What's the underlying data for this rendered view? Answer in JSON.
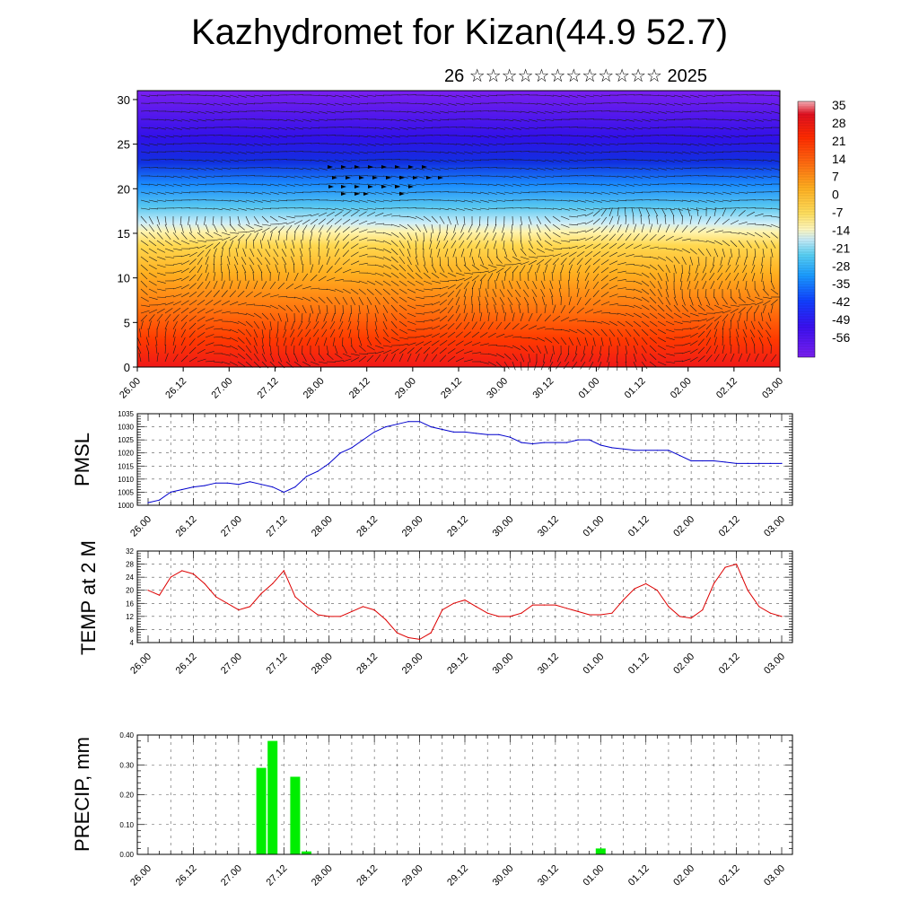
{
  "header": {
    "title": "Kazhydromet for Kizan(44.9 52.7)",
    "subtitle": "26 ☆☆☆☆☆☆☆☆☆☆☆☆ 2025"
  },
  "colors": {
    "pmsl_line": "#0000cc",
    "temp_line": "#dd0000",
    "precip_bar": "#00ee00",
    "grid": "#555555"
  },
  "chart_data": [
    {
      "type": "heatmap",
      "title": "",
      "xlabel": "",
      "ylabel": "",
      "x_ticks": [
        "26.00",
        "26.12",
        "27.00",
        "27.12",
        "28.00",
        "28.12",
        "29.00",
        "29.12",
        "30.00",
        "30.12",
        "01.00",
        "01.12",
        "02.00",
        "02.12",
        "03.00"
      ],
      "y_ticks": [
        0,
        5,
        10,
        15,
        20,
        25,
        30
      ],
      "ylim": [
        0,
        31
      ],
      "overlay": "wind vectors",
      "colorbar": {
        "labels": [
          35,
          28,
          21,
          14,
          7,
          0,
          -7,
          -14,
          -21,
          -28,
          -35,
          -42,
          -49,
          -56
        ],
        "range": [
          -60,
          38
        ]
      }
    },
    {
      "type": "line",
      "ylabel": "PMSL",
      "ylim": [
        1000,
        1035
      ],
      "y_ticks": [
        1000,
        1005,
        1010,
        1015,
        1020,
        1025,
        1030,
        1035
      ],
      "x_ticks": [
        "26.00",
        "26.12",
        "27.00",
        "27.12",
        "28.00",
        "28.12",
        "29.00",
        "29.12",
        "30.00",
        "30.12",
        "01.00",
        "01.12",
        "02.00",
        "02.12",
        "03.00"
      ],
      "x": [
        0,
        3,
        6,
        9,
        12,
        15,
        18,
        21,
        24,
        27,
        30,
        33,
        36,
        39,
        42,
        45,
        48,
        51,
        54,
        57,
        60,
        63,
        66,
        69,
        72,
        75,
        78,
        81,
        84,
        87,
        90,
        93,
        96,
        99,
        102,
        105,
        108,
        111,
        114,
        117,
        120,
        123,
        126,
        129,
        132,
        135,
        138,
        141,
        144,
        147,
        150,
        153,
        156,
        159,
        162,
        165,
        168
      ],
      "values": [
        1001,
        1002,
        1005,
        1006,
        1007,
        1007.5,
        1008.5,
        1008.5,
        1008,
        1009,
        1008,
        1007,
        1005,
        1007,
        1011,
        1013,
        1016,
        1020,
        1022,
        1025,
        1028,
        1030,
        1031,
        1032,
        1032,
        1030,
        1029,
        1028,
        1028,
        1027.5,
        1027,
        1027,
        1026,
        1024,
        1023.5,
        1024,
        1024,
        1024,
        1025,
        1025,
        1023,
        1022,
        1021.5,
        1021,
        1021,
        1021,
        1021,
        1019,
        1017,
        1017,
        1017,
        1016.5,
        1016,
        1016,
        1016,
        1016,
        1016
      ]
    },
    {
      "type": "line",
      "ylabel": "TEMP at 2 M",
      "ylim": [
        4,
        32
      ],
      "y_ticks": [
        4,
        8,
        12,
        16,
        20,
        24,
        28,
        32
      ],
      "x_ticks": [
        "26.00",
        "26.12",
        "27.00",
        "27.12",
        "28.00",
        "28.12",
        "29.00",
        "29.12",
        "30.00",
        "30.12",
        "01.00",
        "01.12",
        "02.00",
        "02.12",
        "03.00"
      ],
      "x": [
        0,
        3,
        6,
        9,
        12,
        15,
        18,
        21,
        24,
        27,
        30,
        33,
        36,
        39,
        42,
        45,
        48,
        51,
        54,
        57,
        60,
        63,
        66,
        69,
        72,
        75,
        78,
        81,
        84,
        87,
        90,
        93,
        96,
        99,
        102,
        105,
        108,
        111,
        114,
        117,
        120,
        123,
        126,
        129,
        132,
        135,
        138,
        141,
        144,
        147,
        150,
        153,
        156,
        159,
        162,
        165,
        168
      ],
      "values": [
        20,
        18.5,
        24,
        26,
        25,
        22,
        18,
        16,
        14,
        15,
        19,
        22,
        26,
        18,
        15,
        12.5,
        12,
        12,
        13.5,
        15,
        14,
        11,
        7,
        5.5,
        5,
        7,
        14,
        16,
        17,
        15,
        13,
        12,
        12,
        13,
        15.5,
        15.5,
        15.5,
        14.5,
        13.5,
        12.5,
        12.5,
        13,
        17,
        20.5,
        22,
        20,
        15,
        12,
        11.5,
        14,
        22,
        27,
        28,
        20,
        15,
        13,
        12
      ]
    },
    {
      "type": "bar",
      "ylabel": "PRECIP, mm",
      "ylim": [
        0,
        0.4
      ],
      "y_ticks": [
        "0.00",
        "0.10",
        "0.20",
        "0.30",
        "0.40"
      ],
      "x_ticks": [
        "26.00",
        "26.12",
        "27.00",
        "27.12",
        "28.00",
        "28.12",
        "29.00",
        "29.12",
        "30.00",
        "30.12",
        "01.00",
        "01.12",
        "02.00",
        "02.12",
        "03.00"
      ],
      "x": [
        30,
        33,
        36,
        39,
        42,
        120
      ],
      "values": [
        0.29,
        0.38,
        0,
        0.26,
        0.01,
        0.02
      ]
    }
  ]
}
